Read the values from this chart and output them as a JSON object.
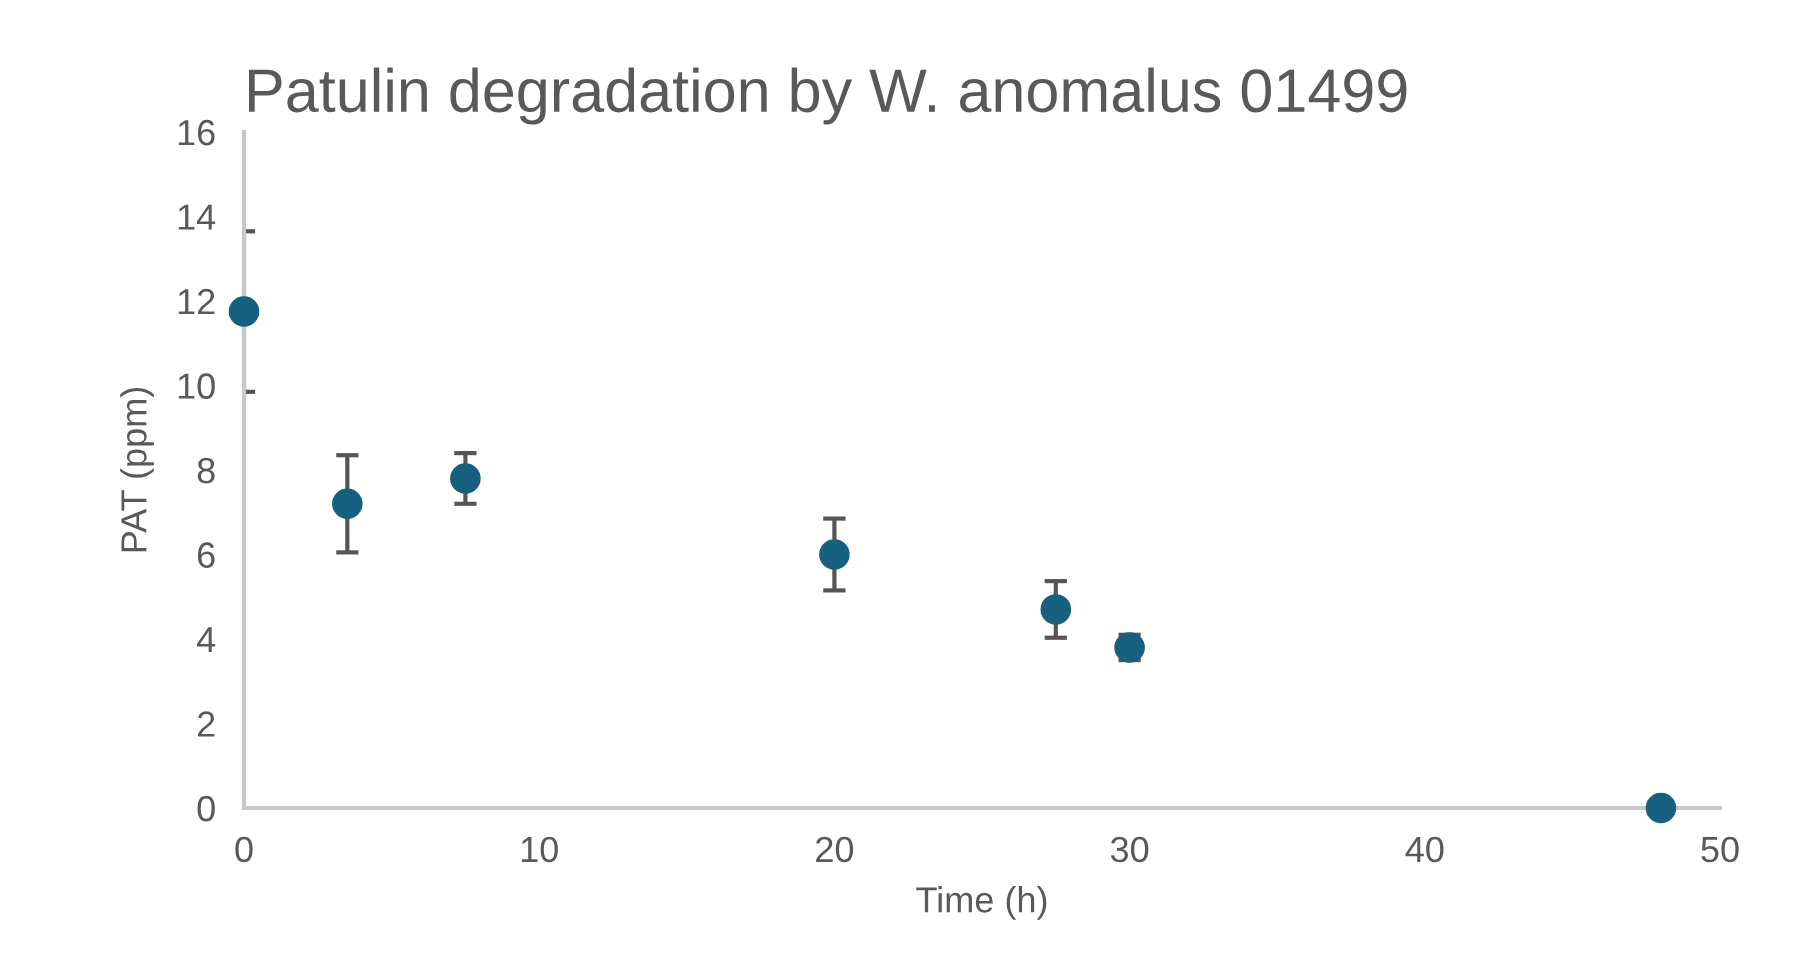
{
  "chart_data": {
    "type": "scatter",
    "title": "Patulin degradation by W. anomalus 01499",
    "xlabel": "Time (h)",
    "ylabel": "PAT (ppm)",
    "x": [
      0,
      3.5,
      7.5,
      20,
      27.5,
      30,
      48
    ],
    "values": [
      11.75,
      7.2,
      7.8,
      6.0,
      4.7,
      3.8,
      0
    ],
    "errors": [
      1.9,
      1.15,
      0.6,
      0.85,
      0.67,
      0.3,
      null
    ],
    "color": "#17607f",
    "marker": "circle",
    "xlim": [
      0,
      50
    ],
    "xticks": [
      0,
      10,
      20,
      30,
      40,
      50
    ],
    "ylim": [
      0,
      16
    ],
    "yticks": [
      0,
      2,
      4,
      6,
      8,
      10,
      12,
      14,
      16
    ],
    "grid": false,
    "legend": false
  }
}
